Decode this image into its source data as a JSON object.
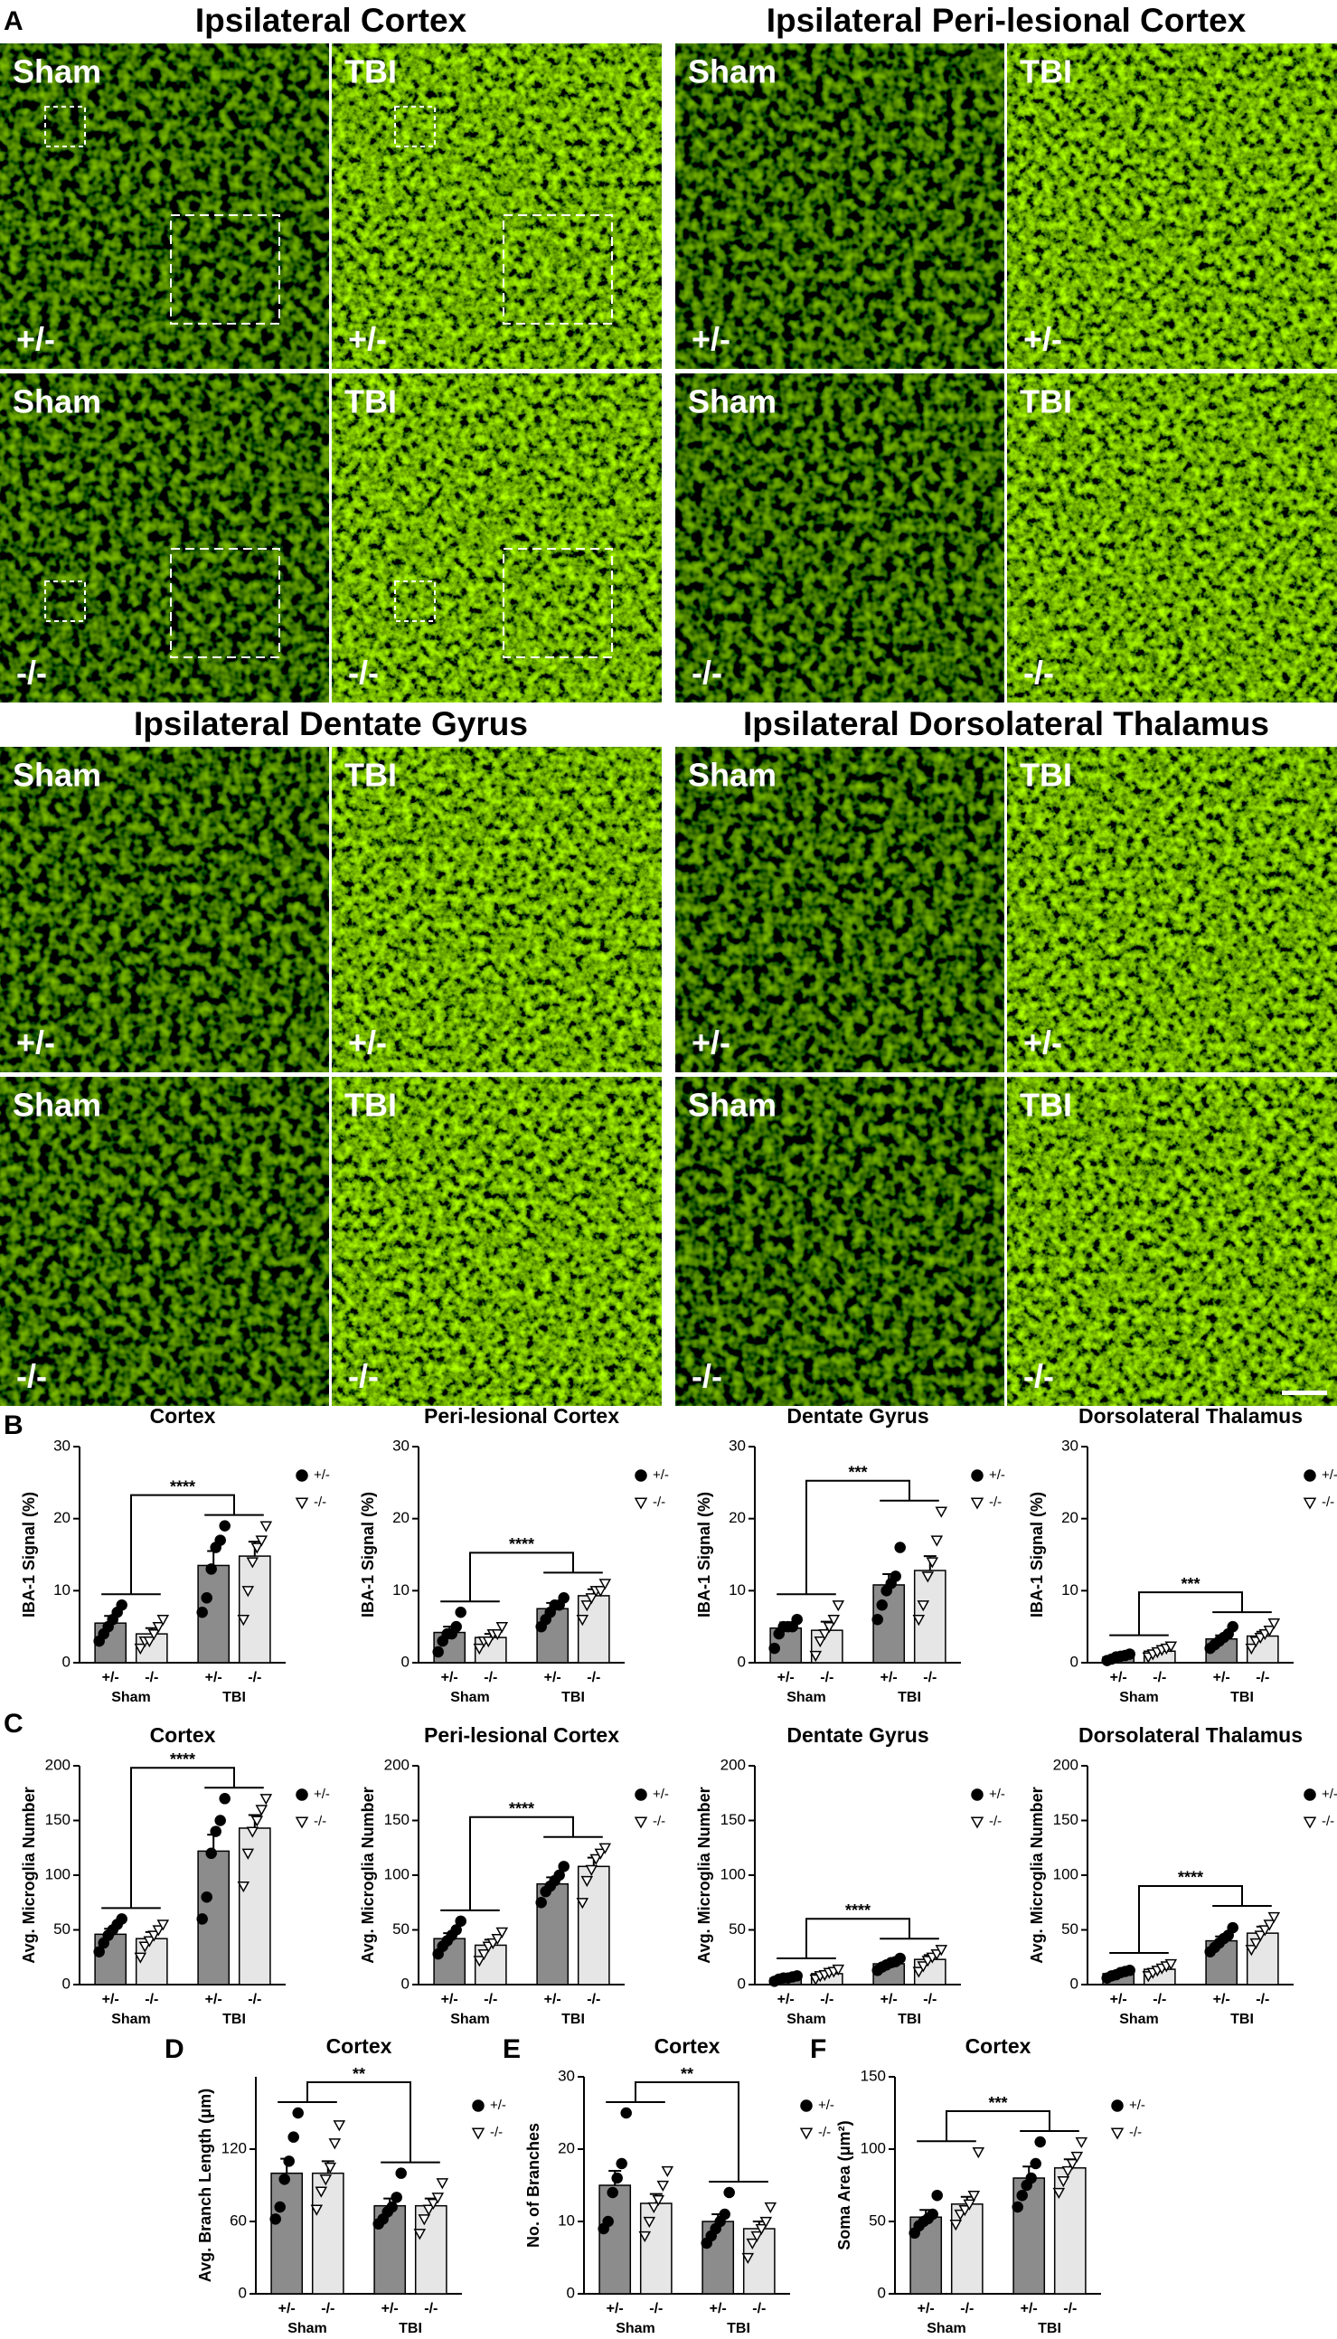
{
  "figure": {
    "panel_letters": [
      "A",
      "B",
      "C",
      "D",
      "E",
      "F"
    ],
    "image_sections": [
      {
        "title": "Ipsilateral Cortex",
        "images": [
          {
            "group": "Sham",
            "genotype": "+/-"
          },
          {
            "group": "TBI",
            "genotype": "+/-"
          },
          {
            "group": "Sham",
            "genotype": "-/-"
          },
          {
            "group": "TBI",
            "genotype": "-/-"
          }
        ]
      },
      {
        "title": "Ipsilateral Peri-lesional Cortex",
        "images": [
          {
            "group": "Sham",
            "genotype": "+/-"
          },
          {
            "group": "TBI",
            "genotype": "+/-"
          },
          {
            "group": "Sham",
            "genotype": "-/-"
          },
          {
            "group": "TBI",
            "genotype": "-/-"
          }
        ]
      },
      {
        "title": "Ipsilateral Dentate Gyrus",
        "images": [
          {
            "group": "Sham",
            "genotype": "+/-"
          },
          {
            "group": "TBI",
            "genotype": "+/-"
          },
          {
            "group": "Sham",
            "genotype": "-/-"
          },
          {
            "group": "TBI",
            "genotype": "-/-"
          }
        ]
      },
      {
        "title": "Ipsilateral Dorsolateral Thalamus",
        "images": [
          {
            "group": "Sham",
            "genotype": "+/-"
          },
          {
            "group": "TBI",
            "genotype": "+/-"
          },
          {
            "group": "Sham",
            "genotype": "-/-"
          },
          {
            "group": "TBI",
            "genotype": "-/-"
          }
        ]
      }
    ]
  },
  "chart_data": [
    {
      "type": "bar",
      "title": "Cortex",
      "ylabel": "IBA-1 Signal (%)",
      "ylim": [
        0,
        30
      ],
      "yticks": [
        0,
        10,
        20,
        30
      ],
      "categories": [
        "Sham",
        "TBI"
      ],
      "annotation": "****",
      "series": [
        {
          "name": "+/-",
          "color": "#8c8c8c",
          "marker": "circle",
          "values": [
            5.5,
            13.5
          ],
          "errors": [
            1,
            2
          ],
          "points": [
            [
              3,
              4,
              5,
              6,
              7,
              8
            ],
            [
              7,
              9,
              13,
              16,
              17,
              19
            ]
          ]
        },
        {
          "name": "-/-",
          "color": "#e6e6e6",
          "marker": "triangle",
          "values": [
            4,
            14.8
          ],
          "errors": [
            0.8,
            2
          ],
          "points": [
            [
              2,
              3,
              3,
              4,
              5,
              6
            ],
            [
              6,
              10,
              14,
              16,
              17,
              19
            ]
          ]
        }
      ]
    },
    {
      "type": "bar",
      "title": "Peri-lesional Cortex",
      "ylabel": "IBA-1 Signal (%)",
      "ylim": [
        0,
        30
      ],
      "yticks": [
        0,
        10,
        20,
        30
      ],
      "categories": [
        "Sham",
        "TBI"
      ],
      "annotation": "****",
      "series": [
        {
          "name": "+/-",
          "color": "#8c8c8c",
          "marker": "circle",
          "values": [
            4.2,
            7.5
          ],
          "errors": [
            0.8,
            0.8
          ],
          "points": [
            [
              1.5,
              3,
              4,
              4,
              5,
              7
            ],
            [
              5,
              6,
              7,
              8,
              8,
              9
            ]
          ]
        },
        {
          "name": "-/-",
          "color": "#e6e6e6",
          "marker": "triangle",
          "values": [
            3.5,
            9.3
          ],
          "errors": [
            0.5,
            0.9
          ],
          "points": [
            [
              2,
              3,
              3,
              4,
              4,
              5
            ],
            [
              6,
              8,
              9,
              10,
              10,
              11
            ]
          ]
        }
      ]
    },
    {
      "type": "bar",
      "title": "Dentate Gyrus",
      "ylabel": "IBA-1 Signal (%)",
      "ylim": [
        0,
        30
      ],
      "yticks": [
        0,
        10,
        20,
        30
      ],
      "categories": [
        "Sham",
        "TBI"
      ],
      "annotation": "***",
      "series": [
        {
          "name": "+/-",
          "color": "#8c8c8c",
          "marker": "circle",
          "values": [
            4.8,
            10.8
          ],
          "errors": [
            0.8,
            1.5
          ],
          "points": [
            [
              2,
              4,
              5,
              5,
              5,
              6
            ],
            [
              6,
              8,
              10,
              11,
              12,
              16
            ]
          ]
        },
        {
          "name": "-/-",
          "color": "#e6e6e6",
          "marker": "triangle",
          "values": [
            4.5,
            12.8
          ],
          "errors": [
            1.2,
            2
          ],
          "points": [
            [
              1,
              3,
              4,
              5,
              6,
              8
            ],
            [
              6,
              8,
              12,
              14,
              17,
              21
            ]
          ]
        }
      ]
    },
    {
      "type": "bar",
      "title": "Dorsolateral Thalamus",
      "ylabel": "IBA-1 Signal (%)",
      "ylim": [
        0,
        30
      ],
      "yticks": [
        0,
        10,
        20,
        30
      ],
      "categories": [
        "Sham",
        "TBI"
      ],
      "annotation": "***",
      "series": [
        {
          "name": "+/-",
          "color": "#8c8c8c",
          "marker": "circle",
          "values": [
            0.8,
            3.3
          ],
          "errors": [
            0.2,
            0.5
          ],
          "points": [
            [
              0.3,
              0.5,
              0.8,
              0.9,
              1,
              1.2
            ],
            [
              2,
              2.5,
              3,
              3.5,
              4,
              5
            ]
          ]
        },
        {
          "name": "-/-",
          "color": "#e6e6e6",
          "marker": "triangle",
          "values": [
            1.6,
            3.7
          ],
          "errors": [
            0.3,
            0.6
          ],
          "points": [
            [
              0.8,
              1.2,
              1.5,
              1.8,
              2,
              2.3
            ],
            [
              2,
              3,
              3.5,
              4,
              4.5,
              5.5
            ]
          ]
        }
      ]
    },
    {
      "type": "bar",
      "title": "Cortex",
      "ylabel": "Avg. Microglia Number",
      "ylim": [
        0,
        200
      ],
      "yticks": [
        0,
        50,
        100,
        150,
        200
      ],
      "categories": [
        "Sham",
        "TBI"
      ],
      "annotation": "****",
      "series": [
        {
          "name": "+/-",
          "color": "#8c8c8c",
          "marker": "circle",
          "values": [
            46,
            122
          ],
          "errors": [
            5,
            15
          ],
          "points": [
            [
              30,
              38,
              45,
              50,
              55,
              60
            ],
            [
              60,
              80,
              120,
              140,
              150,
              170
            ]
          ]
        },
        {
          "name": "-/-",
          "color": "#e6e6e6",
          "marker": "triangle",
          "values": [
            42,
            143
          ],
          "errors": [
            6,
            12
          ],
          "points": [
            [
              25,
              35,
              40,
              45,
              50,
              55
            ],
            [
              90,
              120,
              140,
              150,
              160,
              170
            ]
          ]
        }
      ]
    },
    {
      "type": "bar",
      "title": "Peri-lesional Cortex",
      "ylabel": "Avg. Microglia Number",
      "ylim": [
        0,
        200
      ],
      "yticks": [
        0,
        50,
        100,
        150,
        200
      ],
      "categories": [
        "Sham",
        "TBI"
      ],
      "annotation": "****",
      "series": [
        {
          "name": "+/-",
          "color": "#8c8c8c",
          "marker": "circle",
          "values": [
            42,
            92
          ],
          "errors": [
            5,
            6
          ],
          "points": [
            [
              28,
              35,
              40,
              45,
              50,
              58
            ],
            [
              75,
              85,
              90,
              95,
              100,
              108
            ]
          ]
        },
        {
          "name": "-/-",
          "color": "#e6e6e6",
          "marker": "triangle",
          "values": [
            36,
            108
          ],
          "errors": [
            5,
            8
          ],
          "points": [
            [
              22,
              28,
              35,
              38,
              42,
              48
            ],
            [
              75,
              95,
              105,
              115,
              120,
              125
            ]
          ]
        }
      ]
    },
    {
      "type": "bar",
      "title": "Dentate Gyrus",
      "ylabel": "Avg. Microglia Number",
      "ylim": [
        0,
        200
      ],
      "yticks": [
        0,
        50,
        100,
        150,
        200
      ],
      "categories": [
        "Sham",
        "TBI"
      ],
      "annotation": "****",
      "series": [
        {
          "name": "+/-",
          "color": "#8c8c8c",
          "marker": "circle",
          "values": [
            6,
            19
          ],
          "errors": [
            1,
            2
          ],
          "points": [
            [
              3,
              5,
              6,
              6,
              7,
              8
            ],
            [
              13,
              16,
              18,
              20,
              21,
              24
            ]
          ]
        },
        {
          "name": "-/-",
          "color": "#e6e6e6",
          "marker": "triangle",
          "values": [
            10,
            23
          ],
          "errors": [
            2,
            4
          ],
          "points": [
            [
              5,
              8,
              9,
              11,
              12,
              14
            ],
            [
              12,
              17,
              22,
              25,
              28,
              32
            ]
          ]
        }
      ]
    },
    {
      "type": "bar",
      "title": "Dorsolateral Thalamus",
      "ylabel": "Avg. Microglia Number",
      "ylim": [
        0,
        200
      ],
      "yticks": [
        0,
        50,
        100,
        150,
        200
      ],
      "categories": [
        "Sham",
        "TBI"
      ],
      "annotation": "****",
      "series": [
        {
          "name": "+/-",
          "color": "#8c8c8c",
          "marker": "circle",
          "values": [
            10,
            40
          ],
          "errors": [
            2,
            4
          ],
          "points": [
            [
              6,
              8,
              9,
              11,
              12,
              13
            ],
            [
              30,
              34,
              38,
              42,
              45,
              52
            ]
          ]
        },
        {
          "name": "-/-",
          "color": "#e6e6e6",
          "marker": "triangle",
          "values": [
            14,
            47
          ],
          "errors": [
            2,
            6
          ],
          "points": [
            [
              8,
              11,
              13,
              15,
              17,
              19
            ],
            [
              32,
              38,
              45,
              50,
              55,
              62
            ]
          ]
        }
      ]
    },
    {
      "type": "bar",
      "title": "Cortex",
      "ylabel": "Avg. Branch Length (μm)",
      "ylim": [
        0,
        180
      ],
      "yticks": [
        0,
        60,
        120
      ],
      "categories": [
        "Sham",
        "TBI"
      ],
      "annotation": "**",
      "series": [
        {
          "name": "+/-",
          "color": "#8c8c8c",
          "marker": "circle",
          "values": [
            100,
            73
          ],
          "errors": [
            12,
            6
          ],
          "points": [
            [
              62,
              72,
              95,
              110,
              130,
              150
            ],
            [
              58,
              62,
              68,
              72,
              80,
              100
            ]
          ]
        },
        {
          "name": "-/-",
          "color": "#e6e6e6",
          "marker": "triangle",
          "values": [
            100,
            73
          ],
          "errors": [
            10,
            6
          ],
          "points": [
            [
              70,
              85,
              95,
              105,
              125,
              140
            ],
            [
              50,
              62,
              70,
              75,
              80,
              92
            ]
          ]
        }
      ]
    },
    {
      "type": "bar",
      "title": "Cortex",
      "ylabel": "No. of Branches",
      "ylim": [
        0,
        30
      ],
      "yticks": [
        0,
        10,
        20,
        30
      ],
      "categories": [
        "Sham",
        "TBI"
      ],
      "annotation": "**",
      "series": [
        {
          "name": "+/-",
          "color": "#8c8c8c",
          "marker": "circle",
          "values": [
            15,
            10
          ],
          "errors": [
            2,
            1
          ],
          "points": [
            [
              9,
              10,
              14,
              16,
              18,
              25
            ],
            [
              7,
              8,
              9,
              10,
              11,
              14
            ]
          ]
        },
        {
          "name": "-/-",
          "color": "#e6e6e6",
          "marker": "triangle",
          "values": [
            12.5,
            9
          ],
          "errors": [
            1.3,
            1
          ],
          "points": [
            [
              8,
              10,
              12,
              13,
              15,
              17
            ],
            [
              5,
              7,
              8,
              9,
              10,
              12
            ]
          ]
        }
      ]
    },
    {
      "type": "bar",
      "title": "Cortex",
      "ylabel": "Soma Area (μm²)",
      "ylim": [
        0,
        150
      ],
      "yticks": [
        0,
        50,
        100,
        150
      ],
      "categories": [
        "Sham",
        "TBI"
      ],
      "annotation": "***",
      "series": [
        {
          "name": "+/-",
          "color": "#8c8c8c",
          "marker": "circle",
          "values": [
            53,
            80
          ],
          "errors": [
            5,
            8
          ],
          "points": [
            [
              42,
              47,
              50,
              52,
              55,
              68
            ],
            [
              60,
              68,
              75,
              80,
              90,
              105
            ]
          ]
        },
        {
          "name": "-/-",
          "color": "#e6e6e6",
          "marker": "triangle",
          "values": [
            62,
            87
          ],
          "errors": [
            5,
            6
          ],
          "points": [
            [
              48,
              55,
              58,
              62,
              68,
              98
            ],
            [
              70,
              78,
              85,
              90,
              95,
              105
            ]
          ]
        }
      ]
    }
  ]
}
